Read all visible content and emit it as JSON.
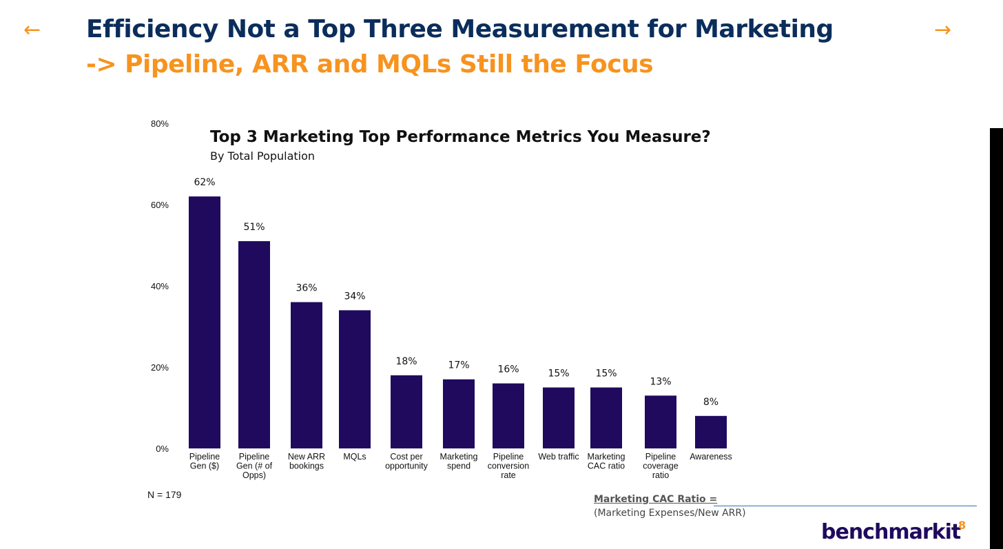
{
  "slide": {
    "title": "Efficiency Not a Top Three Measurement for Marketing",
    "subtitle": "-> Pipeline, ARR and MQLs Still the Focus",
    "nav_prev_glyph": "←",
    "nav_next_glyph": "→",
    "page_number": "8",
    "logo_main": "benchmark",
    "logo_suffix": "it"
  },
  "note": {
    "sample_size": "N = 179",
    "cac_title": "Marketing CAC Ratio =",
    "cac_formula": "(Marketing Expenses/New ARR)"
  },
  "colors": {
    "bar": "#1f0a5e",
    "title": "#0b2d5b",
    "accent": "#f7931e"
  },
  "chart_data": {
    "type": "bar",
    "title": "Top 3 Marketing Top Performance Metrics You Measure?",
    "subtitle": "By Total Population",
    "xlabel": "",
    "ylabel": "",
    "ylim": [
      0,
      80
    ],
    "yticks": [
      0,
      20,
      40,
      60,
      80
    ],
    "ytick_labels": [
      "0%",
      "20%",
      "40%",
      "60%",
      "80%"
    ],
    "grid": false,
    "legend": "none",
    "categories": [
      [
        "Pipeline",
        "Gen ($)"
      ],
      [
        "Pipeline",
        "Gen (# of",
        "Opps)"
      ],
      [
        "New ARR",
        "bookings"
      ],
      [
        "MQLs"
      ],
      [
        "Cost per",
        "opportunity"
      ],
      [
        "Marketing",
        "spend"
      ],
      [
        "Pipeline",
        "conversion",
        "rate"
      ],
      [
        "Web traffic"
      ],
      [
        "Marketing",
        "CAC ratio"
      ],
      [
        "Pipeline",
        "coverage",
        "ratio"
      ],
      [
        "Awareness"
      ]
    ],
    "values": [
      62,
      51,
      36,
      34,
      18,
      17,
      16,
      15,
      15,
      13,
      8
    ],
    "value_labels": [
      "62%",
      "51%",
      "36%",
      "34%",
      "18%",
      "17%",
      "16%",
      "15%",
      "15%",
      "13%",
      "8%"
    ]
  }
}
